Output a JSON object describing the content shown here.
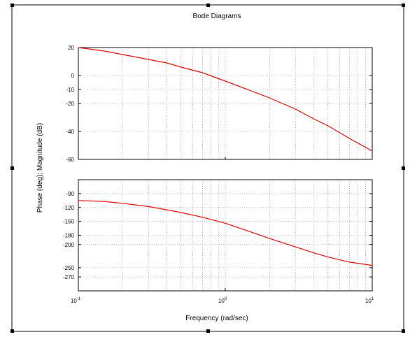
{
  "chart_data": {
    "type": "line",
    "title": "Bode Diagrams",
    "xlabel": "Frequency (rad/sec)",
    "ylabel": "Phase (deg); Magnitude (dB)",
    "xscale": "log",
    "xlim": [
      0.1,
      10
    ],
    "x_tick_labels": [
      {
        "base": "10",
        "exp": "-1"
      },
      {
        "base": "10",
        "exp": "0"
      },
      {
        "base": "10",
        "exp": "1"
      }
    ],
    "grid": true,
    "line_color": "#dd0000",
    "panels": [
      {
        "name": "magnitude",
        "ylim": [
          -60,
          20
        ],
        "yticks": [
          "20",
          "0",
          "-10",
          "-20",
          "-40",
          "-60"
        ],
        "ytick_values": [
          20,
          0,
          -10,
          -20,
          -40,
          -60
        ],
        "x": [
          0.1,
          0.15,
          0.2,
          0.3,
          0.4,
          0.5,
          0.7,
          1,
          1.5,
          2,
          3,
          4,
          5,
          7,
          10
        ],
        "y": [
          20,
          17.5,
          15,
          11.5,
          9,
          6,
          2,
          -4,
          -11,
          -16,
          -24,
          -31,
          -36,
          -45,
          -54
        ]
      },
      {
        "name": "phase",
        "ylim": [
          -300,
          -60
        ],
        "yticks": [
          "-90",
          "-120",
          "-150",
          "-180",
          "-200",
          "-250",
          "-270"
        ],
        "ytick_values": [
          -90,
          -120,
          -150,
          -180,
          -200,
          -250,
          -270
        ],
        "x": [
          0.1,
          0.15,
          0.2,
          0.3,
          0.4,
          0.5,
          0.7,
          1,
          1.5,
          2,
          3,
          4,
          5,
          7,
          10
        ],
        "y": [
          -105,
          -107,
          -111,
          -118,
          -125,
          -131,
          -141,
          -154,
          -173,
          -187,
          -205,
          -218,
          -227,
          -238,
          -245
        ]
      }
    ]
  }
}
